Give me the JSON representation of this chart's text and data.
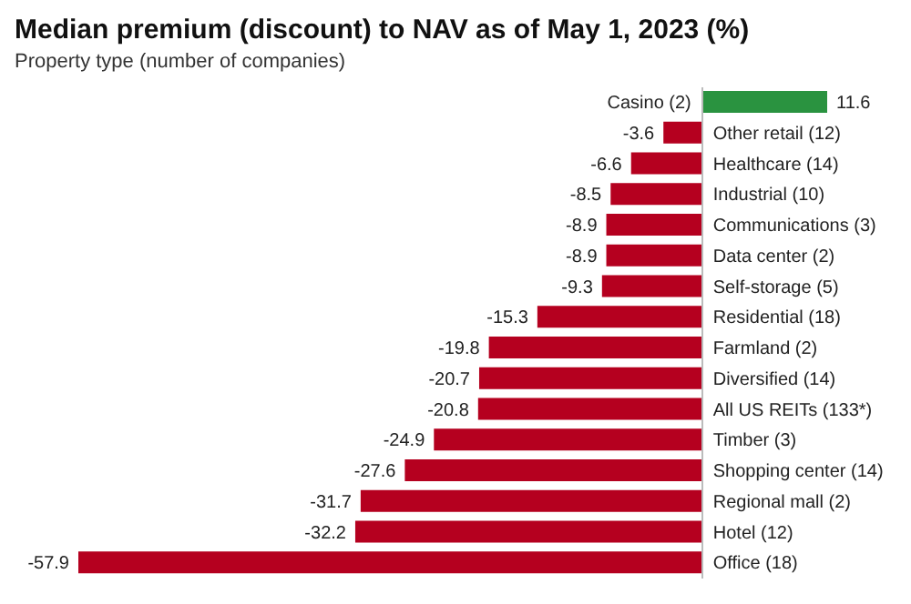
{
  "chart_data": {
    "type": "bar",
    "orientation": "horizontal",
    "title": "Median premium (discount) to NAV as of May 1, 2023 (%)",
    "subtitle": "Property type (number of companies)",
    "categories": [
      "Casino (2)",
      "Other retail (12)",
      "Healthcare (14)",
      "Industrial (10)",
      "Communications (3)",
      "Data center (2)",
      "Self-storage (5)",
      "Residential (18)",
      "Farmland (2)",
      "Diversified (14)",
      "All US REITs (133*)",
      "Timber (3)",
      "Shopping center (14)",
      "Regional mall (2)",
      "Hotel (12)",
      "Office (18)"
    ],
    "values": [
      11.6,
      -3.6,
      -6.6,
      -8.5,
      -8.9,
      -8.9,
      -9.3,
      -15.3,
      -19.8,
      -20.7,
      -20.8,
      -24.9,
      -27.6,
      -31.7,
      -32.2,
      -57.9
    ],
    "colors": [
      "#2a9340",
      "#b5001f",
      "#b5001f",
      "#b5001f",
      "#b5001f",
      "#b5001f",
      "#b5001f",
      "#b5001f",
      "#b5001f",
      "#b5001f",
      "#b5001f",
      "#b5001f",
      "#b5001f",
      "#b5001f",
      "#b5001f",
      "#b5001f"
    ],
    "data_labels": true
  }
}
